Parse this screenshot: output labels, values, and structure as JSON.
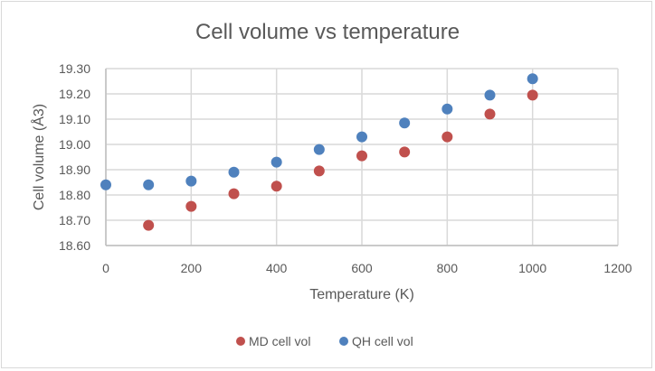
{
  "chart_data": {
    "type": "scatter",
    "title": "Cell volume vs temperature",
    "xlabel": "Temperature (K)",
    "ylabel": "Cell volume (Å3)",
    "xlim": [
      0,
      1200
    ],
    "ylim": [
      18.6,
      19.3
    ],
    "xticks": [
      0,
      200,
      400,
      600,
      800,
      1000,
      1200
    ],
    "xtick_labels": [
      "0",
      "200",
      "400",
      "600",
      "800",
      "1000",
      "1200"
    ],
    "yticks": [
      18.6,
      18.7,
      18.8,
      18.9,
      19.0,
      19.1,
      19.2,
      19.3
    ],
    "ytick_labels": [
      "18.60",
      "18.70",
      "18.80",
      "18.90",
      "19.00",
      "19.10",
      "19.20",
      "19.30"
    ],
    "grid": true,
    "legend_position": "bottom",
    "series": [
      {
        "name": "MD cell vol",
        "color": "#c0504d",
        "x": [
          100,
          200,
          300,
          400,
          500,
          600,
          700,
          800,
          900,
          1000
        ],
        "y": [
          18.68,
          18.755,
          18.805,
          18.835,
          18.895,
          18.955,
          18.97,
          19.03,
          19.12,
          19.195
        ]
      },
      {
        "name": "QH cell vol",
        "color": "#4f81bd",
        "x": [
          0,
          100,
          200,
          300,
          400,
          500,
          600,
          700,
          800,
          900,
          1000
        ],
        "y": [
          18.84,
          18.84,
          18.855,
          18.89,
          18.93,
          18.98,
          19.03,
          19.085,
          19.14,
          19.195,
          19.26
        ]
      }
    ]
  }
}
